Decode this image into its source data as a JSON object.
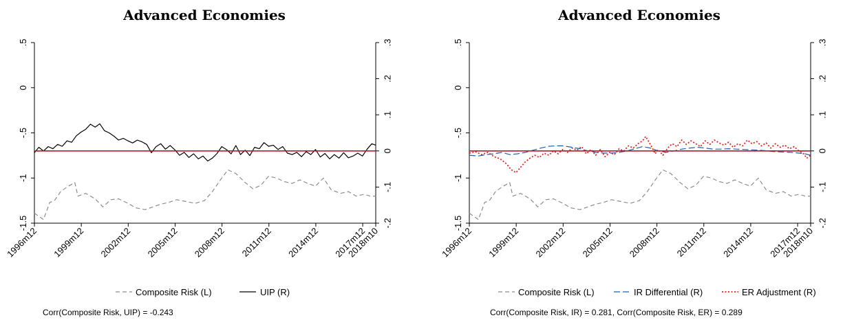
{
  "chart_data": [
    {
      "type": "line",
      "title": "Advanced Economies",
      "x_tick_labels": [
        "1996m12",
        "1999m12",
        "2002m12",
        "2005m12",
        "2008m12",
        "2011m12",
        "2014m12",
        "2017m12",
        "2018m10"
      ],
      "x_tick_values": [
        1996.917,
        1999.917,
        2002.917,
        2005.917,
        2008.917,
        2011.917,
        2014.917,
        2017.917,
        2018.75
      ],
      "x_range": [
        1996.917,
        2018.75
      ],
      "y_left": {
        "ticks": [
          "-1.5",
          "-1",
          "-.5",
          "0",
          ".5"
        ],
        "tick_values": [
          -1.5,
          -1,
          -0.5,
          0,
          0.5
        ],
        "range": [
          -1.5,
          0.5
        ]
      },
      "y_right": {
        "ticks": [
          "-.2",
          "-.1",
          "0",
          ".1",
          ".2",
          ".3"
        ],
        "tick_values": [
          -0.2,
          -0.1,
          0,
          0.1,
          0.2,
          0.3
        ],
        "range": [
          -0.2,
          0.3
        ]
      },
      "reference_line": {
        "axis": "right",
        "value": 0,
        "color": "#c0102a"
      },
      "series": [
        {
          "name": "Composite Risk (L)",
          "axis": "left",
          "color": "#8c8c8c",
          "style": "dashed",
          "x": [
            1996.917,
            1997.5,
            1997.9,
            1998.2,
            1998.6,
            1999.0,
            1999.5,
            1999.7,
            2000.2,
            2000.8,
            2001.3,
            2001.8,
            2002.3,
            2002.9,
            2003.4,
            2004.0,
            2004.5,
            2005.0,
            2005.5,
            2006.0,
            2006.6,
            2007.2,
            2007.8,
            2008.3,
            2008.9,
            2009.3,
            2009.8,
            2010.4,
            2010.9,
            2011.4,
            2011.9,
            2012.4,
            2012.9,
            2013.4,
            2013.9,
            2014.4,
            2014.9,
            2015.4,
            2015.9,
            2016.5,
            2017.0,
            2017.5,
            2018.0,
            2018.4,
            2018.75
          ],
          "y": [
            -1.39,
            -1.46,
            -1.27,
            -1.25,
            -1.15,
            -1.1,
            -1.05,
            -1.2,
            -1.17,
            -1.23,
            -1.32,
            -1.24,
            -1.23,
            -1.28,
            -1.33,
            -1.35,
            -1.32,
            -1.29,
            -1.27,
            -1.24,
            -1.26,
            -1.28,
            -1.25,
            -1.15,
            -1.0,
            -0.91,
            -0.95,
            -1.05,
            -1.12,
            -1.08,
            -0.98,
            -1.0,
            -1.04,
            -1.06,
            -1.02,
            -1.06,
            -1.09,
            -1.0,
            -1.13,
            -1.17,
            -1.15,
            -1.2,
            -1.18,
            -1.2,
            -1.2
          ]
        },
        {
          "name": "UIP (R)",
          "axis": "right",
          "color": "#000000",
          "style": "solid",
          "x": [
            1996.917,
            1997.2,
            1997.5,
            1997.8,
            1998.1,
            1998.4,
            1998.7,
            1999.0,
            1999.3,
            1999.6,
            1999.9,
            2000.2,
            2000.5,
            2000.8,
            2001.1,
            2001.4,
            2001.7,
            2002.0,
            2002.3,
            2002.6,
            2002.9,
            2003.2,
            2003.5,
            2003.8,
            2004.1,
            2004.4,
            2004.7,
            2005.0,
            2005.3,
            2005.6,
            2005.9,
            2006.2,
            2006.5,
            2006.8,
            2007.1,
            2007.4,
            2007.7,
            2008.0,
            2008.3,
            2008.6,
            2008.9,
            2009.2,
            2009.5,
            2009.8,
            2010.1,
            2010.4,
            2010.7,
            2011.0,
            2011.3,
            2011.6,
            2011.9,
            2012.2,
            2012.5,
            2012.8,
            2013.1,
            2013.4,
            2013.7,
            2014.0,
            2014.3,
            2014.6,
            2014.9,
            2015.2,
            2015.5,
            2015.8,
            2016.1,
            2016.4,
            2016.7,
            2017.0,
            2017.3,
            2017.6,
            2017.9,
            2018.2,
            2018.5,
            2018.75
          ],
          "y": [
            -0.005,
            0.01,
            0.0,
            0.012,
            0.006,
            0.018,
            0.013,
            0.028,
            0.024,
            0.042,
            0.052,
            0.06,
            0.074,
            0.066,
            0.075,
            0.056,
            0.05,
            0.041,
            0.03,
            0.035,
            0.028,
            0.022,
            0.03,
            0.025,
            0.018,
            -0.005,
            0.012,
            0.02,
            0.005,
            0.015,
            0.003,
            -0.012,
            -0.004,
            -0.018,
            -0.008,
            -0.022,
            -0.014,
            -0.028,
            -0.02,
            -0.007,
            0.012,
            0.004,
            -0.008,
            0.015,
            -0.01,
            0.002,
            -0.013,
            0.01,
            0.006,
            0.023,
            0.013,
            0.016,
            0.004,
            0.012,
            -0.006,
            -0.01,
            -0.004,
            -0.016,
            -0.002,
            -0.01,
            0.004,
            -0.017,
            -0.007,
            -0.022,
            -0.01,
            -0.02,
            -0.005,
            -0.019,
            -0.014,
            -0.006,
            -0.014,
            0.005,
            0.02,
            0.016
          ]
        }
      ],
      "legend": [
        {
          "label": "Composite Risk (L)",
          "style": "dashed",
          "color": "#8c8c8c"
        },
        {
          "label": "UIP (R)",
          "style": "solid",
          "color": "#000000"
        }
      ],
      "legend_position": "bottom",
      "note": "Corr(Composite Risk, UIP) = -0.243"
    },
    {
      "type": "line",
      "title": "Advanced Economies",
      "x_tick_labels": [
        "1996m12",
        "1999m12",
        "2002m12",
        "2005m12",
        "2008m12",
        "2011m12",
        "2014m12",
        "2017m12",
        "2018m10"
      ],
      "x_tick_values": [
        1996.917,
        1999.917,
        2002.917,
        2005.917,
        2008.917,
        2011.917,
        2014.917,
        2017.917,
        2018.75
      ],
      "x_range": [
        1996.917,
        2018.75
      ],
      "y_left": {
        "ticks": [
          "-1.5",
          "-1",
          "-.5",
          "0",
          ".5"
        ],
        "tick_values": [
          -1.5,
          -1,
          -0.5,
          0,
          0.5
        ],
        "range": [
          -1.5,
          0.5
        ]
      },
      "y_right": {
        "ticks": [
          "-.2",
          "-.1",
          "0",
          ".1",
          ".2",
          ".3"
        ],
        "tick_values": [
          -0.2,
          -0.1,
          0,
          0.1,
          0.2,
          0.3
        ],
        "range": [
          -0.2,
          0.3
        ]
      },
      "reference_line": {
        "axis": "right",
        "value": 0,
        "color": "#c0102a"
      },
      "series": [
        {
          "name": "Composite Risk (L)",
          "axis": "left",
          "color": "#8c8c8c",
          "style": "dashed",
          "x": [
            1996.917,
            1997.5,
            1997.9,
            1998.2,
            1998.6,
            1999.0,
            1999.5,
            1999.7,
            2000.2,
            2000.8,
            2001.3,
            2001.8,
            2002.3,
            2002.9,
            2003.4,
            2004.0,
            2004.5,
            2005.0,
            2005.5,
            2006.0,
            2006.6,
            2007.2,
            2007.8,
            2008.3,
            2008.9,
            2009.3,
            2009.8,
            2010.4,
            2010.9,
            2011.4,
            2011.9,
            2012.4,
            2012.9,
            2013.4,
            2013.9,
            2014.4,
            2014.9,
            2015.4,
            2015.9,
            2016.5,
            2017.0,
            2017.5,
            2018.0,
            2018.4,
            2018.75
          ],
          "y": [
            -1.39,
            -1.46,
            -1.27,
            -1.25,
            -1.15,
            -1.1,
            -1.05,
            -1.2,
            -1.17,
            -1.23,
            -1.32,
            -1.24,
            -1.23,
            -1.28,
            -1.33,
            -1.35,
            -1.32,
            -1.29,
            -1.27,
            -1.24,
            -1.26,
            -1.28,
            -1.25,
            -1.15,
            -1.0,
            -0.91,
            -0.95,
            -1.05,
            -1.12,
            -1.08,
            -0.98,
            -1.0,
            -1.04,
            -1.06,
            -1.02,
            -1.06,
            -1.09,
            -1.0,
            -1.13,
            -1.17,
            -1.15,
            -1.2,
            -1.18,
            -1.2,
            -1.2
          ]
        },
        {
          "name": "IR Differential (R)",
          "axis": "right",
          "color": "#1f5fae",
          "style": "longdash",
          "x": [
            1996.917,
            1997.5,
            1998.0,
            1998.5,
            1999.0,
            1999.5,
            2000.0,
            2000.5,
            2001.0,
            2001.5,
            2002.0,
            2002.5,
            2002.9,
            2003.5,
            2004.0,
            2004.5,
            2005.0,
            2005.5,
            2006.0,
            2006.5,
            2007.0,
            2007.5,
            2008.0,
            2008.5,
            2009.0,
            2009.5,
            2010.0,
            2010.5,
            2011.0,
            2011.5,
            2012.0,
            2012.5,
            2013.0,
            2013.5,
            2014.0,
            2014.5,
            2015.0,
            2015.5,
            2016.0,
            2016.5,
            2017.0,
            2017.5,
            2018.0,
            2018.4,
            2018.75
          ],
          "y": [
            -0.012,
            -0.014,
            -0.01,
            -0.008,
            -0.004,
            -0.01,
            -0.008,
            -0.004,
            0.002,
            0.008,
            0.013,
            0.014,
            0.014,
            0.01,
            0.006,
            0.0,
            -0.004,
            -0.006,
            -0.006,
            -0.004,
            0.0,
            0.006,
            0.012,
            0.008,
            0.0,
            -0.004,
            0.0,
            0.005,
            0.008,
            0.01,
            0.008,
            0.005,
            0.005,
            0.006,
            0.005,
            0.004,
            0.003,
            0.002,
            0.0,
            -0.002,
            -0.003,
            -0.004,
            -0.006,
            -0.008,
            -0.012
          ]
        },
        {
          "name": "ER Adjustment (R)",
          "axis": "right",
          "color": "#e2231a",
          "style": "dotted",
          "x": [
            1996.917,
            1997.3,
            1997.7,
            1998.1,
            1998.5,
            1998.9,
            1999.3,
            1999.6,
            1999.9,
            2000.2,
            2000.5,
            2000.8,
            2001.1,
            2001.4,
            2001.7,
            2002.0,
            2002.3,
            2002.6,
            2002.9,
            2003.2,
            2003.5,
            2003.8,
            2004.1,
            2004.4,
            2004.7,
            2005.0,
            2005.3,
            2005.6,
            2005.9,
            2006.2,
            2006.5,
            2006.8,
            2007.1,
            2007.4,
            2007.7,
            2008.0,
            2008.2,
            2008.4,
            2008.6,
            2008.8,
            2009.0,
            2009.3,
            2009.6,
            2009.9,
            2010.2,
            2010.5,
            2010.8,
            2011.1,
            2011.4,
            2011.7,
            2012.0,
            2012.3,
            2012.6,
            2012.9,
            2013.2,
            2013.5,
            2013.8,
            2014.1,
            2014.4,
            2014.7,
            2015.0,
            2015.3,
            2015.6,
            2015.9,
            2016.2,
            2016.5,
            2016.8,
            2017.1,
            2017.4,
            2017.7,
            2018.0,
            2018.3,
            2018.5,
            2018.75
          ],
          "y": [
            -0.006,
            -0.002,
            -0.01,
            -0.004,
            -0.016,
            -0.022,
            -0.036,
            -0.052,
            -0.06,
            -0.045,
            -0.03,
            -0.02,
            -0.012,
            -0.018,
            -0.006,
            -0.012,
            0.0,
            -0.008,
            0.004,
            -0.004,
            0.008,
            0.002,
            0.012,
            -0.008,
            0.004,
            -0.012,
            0.004,
            -0.016,
            -0.004,
            -0.01,
            0.006,
            0.0,
            0.014,
            0.008,
            0.02,
            0.028,
            0.04,
            0.025,
            0.01,
            -0.008,
            0.004,
            -0.012,
            0.008,
            0.02,
            0.012,
            0.03,
            0.018,
            0.028,
            0.02,
            0.012,
            0.028,
            0.018,
            0.03,
            0.022,
            0.016,
            0.024,
            0.01,
            0.02,
            0.014,
            0.03,
            0.02,
            0.026,
            0.014,
            0.022,
            0.008,
            0.02,
            0.01,
            0.016,
            0.006,
            0.012,
            0.0,
            -0.008,
            -0.02,
            -0.012
          ]
        }
      ],
      "legend": [
        {
          "label": "Composite Risk (L)",
          "style": "dashed",
          "color": "#8c8c8c"
        },
        {
          "label": "IR Differential (R)",
          "style": "longdash",
          "color": "#1f5fae"
        },
        {
          "label": "ER Adjustment (R)",
          "style": "dotted",
          "color": "#e2231a"
        }
      ],
      "legend_position": "bottom",
      "note": "Corr(Composite Risk, IR) = 0.281, Corr(Composite Risk, ER) = 0.289"
    }
  ]
}
